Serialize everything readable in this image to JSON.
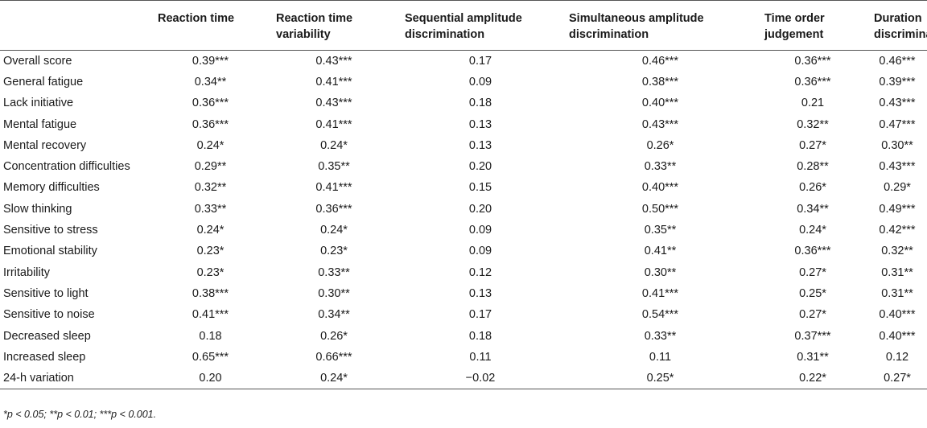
{
  "table": {
    "headers": [
      "",
      "Reaction time",
      "Reaction time variability",
      "Sequential amplitude discrimination",
      "Simultaneous amplitude discrimination",
      "Time order judgement",
      "Duration discrimination"
    ],
    "rows": [
      [
        "Overall score",
        "0.39***",
        "0.43***",
        "0.17",
        "0.46***",
        "0.36***",
        "0.46***"
      ],
      [
        "General fatigue",
        "0.34**",
        "0.41***",
        "0.09",
        "0.38***",
        "0.36***",
        "0.39***"
      ],
      [
        "Lack initiative",
        "0.36***",
        "0.43***",
        "0.18",
        "0.40***",
        "0.21",
        "0.43***"
      ],
      [
        "Mental fatigue",
        "0.36***",
        "0.41***",
        "0.13",
        "0.43***",
        "0.32**",
        "0.47***"
      ],
      [
        "Mental recovery",
        "0.24*",
        "0.24*",
        "0.13",
        "0.26*",
        "0.27*",
        "0.30**"
      ],
      [
        "Concentration difficulties",
        "0.29**",
        "0.35**",
        "0.20",
        "0.33**",
        "0.28**",
        "0.43***"
      ],
      [
        "Memory difficulties",
        "0.32**",
        "0.41***",
        "0.15",
        "0.40***",
        "0.26*",
        "0.29*"
      ],
      [
        "Slow thinking",
        "0.33**",
        "0.36***",
        "0.20",
        "0.50***",
        "0.34**",
        "0.49***"
      ],
      [
        "Sensitive to stress",
        "0.24*",
        "0.24*",
        "0.09",
        "0.35**",
        "0.24*",
        "0.42***"
      ],
      [
        "Emotional stability",
        "0.23*",
        "0.23*",
        "0.09",
        "0.41**",
        "0.36***",
        "0.32**"
      ],
      [
        "Irritability",
        "0.23*",
        "0.33**",
        "0.12",
        "0.30**",
        "0.27*",
        "0.31**"
      ],
      [
        "Sensitive to light",
        "0.38***",
        "0.30**",
        "0.13",
        "0.41***",
        "0.25*",
        "0.31**"
      ],
      [
        "Sensitive to noise",
        "0.41***",
        "0.34**",
        "0.17",
        "0.54***",
        "0.27*",
        "0.40***"
      ],
      [
        "Decreased sleep",
        "0.18",
        "0.26*",
        "0.18",
        "0.33**",
        "0.37***",
        "0.40***"
      ],
      [
        "Increased sleep",
        "0.65***",
        "0.66***",
        "0.11",
        "0.11",
        "0.31**",
        "0.12"
      ],
      [
        "24-h variation",
        "0.20",
        "0.24*",
        "−0.02",
        "0.25*",
        "0.22*",
        "0.27*"
      ]
    ]
  },
  "footnote": "*p < 0.05; **p < 0.01; ***p < 0.001."
}
